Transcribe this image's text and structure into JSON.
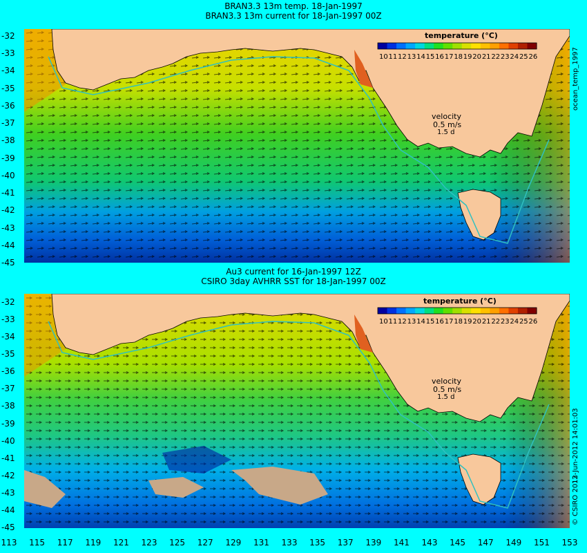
{
  "titles": {
    "top_line1": "BRAN3.3 13m temp. 18-Jan-1997",
    "top_line2": "BRAN3.3 13m current for 18-Jan-1997 00Z",
    "bottom_line1": "Au3 current for 16-Jan-1997 12Z",
    "bottom_line2": "CSIRO 3day AVHRR SST for 18-Jan-1997 00Z"
  },
  "colorbar": {
    "label": "temperature (°C)",
    "ticks": [
      "10",
      "11",
      "12",
      "13",
      "14",
      "15",
      "16",
      "17",
      "18",
      "19",
      "20",
      "21",
      "22",
      "23",
      "24",
      "25",
      "26"
    ],
    "colors": [
      "#0000a0",
      "#0030e0",
      "#0070ff",
      "#00a8ff",
      "#00d8e0",
      "#00e080",
      "#20e020",
      "#60e000",
      "#a0e000",
      "#d8e000",
      "#ffe000",
      "#ffc000",
      "#ffa000",
      "#ff7000",
      "#e04000",
      "#b02000",
      "#800000"
    ]
  },
  "velocity_legend": {
    "label": "velocity",
    "value": "0.5 m/s",
    "sub": "1.5 d"
  },
  "side_labels": {
    "top": "ocean_temp_1997",
    "bottom_date": "13-Jun-2012 14:01:03",
    "bottom_credit": "© CSIRO 2012"
  },
  "axes": {
    "y_ticks": [
      "-32",
      "-33",
      "-34",
      "-35",
      "-36",
      "-37",
      "-38",
      "-39",
      "-40",
      "-41",
      "-42",
      "-43",
      "-44",
      "-45"
    ],
    "x_ticks": [
      "113",
      "115",
      "117",
      "119",
      "121",
      "123",
      "125",
      "127",
      "129",
      "131",
      "133",
      "135",
      "137",
      "139",
      "141",
      "143",
      "145",
      "147",
      "149",
      "151",
      "153"
    ]
  },
  "colors": {
    "land": "#f8c89c",
    "background": "#00ffff",
    "cloud": "#c8a888"
  }
}
